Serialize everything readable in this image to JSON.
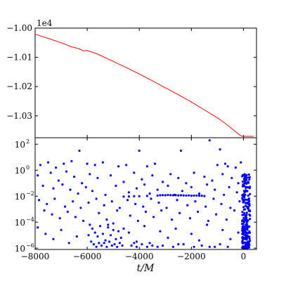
{
  "chart_data": [
    {
      "type": "line",
      "color": "#ff0000",
      "offset_label": "1e4",
      "xlim": [
        -8000,
        500
      ],
      "ylim": [
        -1.0375,
        -1.0
      ],
      "yticks": [
        -1.0,
        -1.01,
        -1.02,
        -1.03
      ],
      "ytick_labels": [
        "−1.00",
        "−1.01",
        "−1.02",
        "−1.03"
      ],
      "x": [
        -8000,
        -7500,
        -7000,
        -6600,
        -6300,
        -6150,
        -6000,
        -5850,
        -5600,
        -5000,
        -4500,
        -4000,
        -3500,
        -3000,
        -2500,
        -2000,
        -1500,
        -1000,
        -700,
        -500,
        -300,
        -150,
        -50,
        0,
        30,
        60,
        150,
        300,
        400
      ],
      "y": [
        -1.0021,
        -1.0035,
        -1.005,
        -1.0064,
        -1.0071,
        -1.0078,
        -1.0077,
        -1.0081,
        -1.0089,
        -1.0114,
        -1.0135,
        -1.0157,
        -1.018,
        -1.0204,
        -1.0228,
        -1.0253,
        -1.028,
        -1.0307,
        -1.0326,
        -1.034,
        -1.0355,
        -1.0365,
        -1.0375,
        -1.0385,
        -1.04,
        -1.042,
        -1.0422,
        -1.0425,
        -1.0428
      ]
    },
    {
      "type": "scatter",
      "color": "#0000ff",
      "xlabel": "t/M",
      "xlim": [
        -8000,
        500
      ],
      "yscale": "log",
      "ylim_log10": [
        -6.1,
        2.5
      ],
      "xticks": [
        -8000,
        -6000,
        -4000,
        -2000,
        0
      ],
      "xtick_labels": [
        "−8000",
        "−6000",
        "−4000",
        "−2000",
        "0"
      ],
      "yticks": [
        {
          "base": "10",
          "exp": "2"
        },
        {
          "base": "10",
          "exp": "0"
        },
        {
          "base": "10",
          "exp": "−2"
        },
        {
          "base": "10",
          "exp": "−4"
        },
        {
          "base": "10",
          "exp": "−6"
        }
      ],
      "ytick_values_log10": [
        2,
        0,
        -2,
        -4,
        -6
      ],
      "points": [
        [
          -6300,
          1.5
        ],
        [
          -4000,
          1.5
        ],
        [
          -1300,
          2.3
        ],
        [
          -900,
          1.6
        ],
        [
          -2400,
          1.5
        ],
        [
          -7800,
          0.4
        ],
        [
          -7500,
          0.6
        ],
        [
          -7200,
          0.2
        ],
        [
          -6900,
          0.5
        ],
        [
          -6600,
          0.7
        ],
        [
          -6000,
          0.5
        ],
        [
          -5700,
          0.4
        ],
        [
          -5400,
          0.6
        ],
        [
          -4800,
          0.3
        ],
        [
          -4500,
          0.4
        ],
        [
          -3700,
          0.3
        ],
        [
          -3400,
          0.5
        ],
        [
          -1000,
          0.4
        ],
        [
          -600,
          0.3
        ],
        [
          -300,
          0.2
        ],
        [
          -100,
          0.6
        ],
        [
          -700,
          0.5
        ],
        [
          -7900,
          -0.4
        ],
        [
          -7400,
          -0.2
        ],
        [
          -7100,
          -0.8
        ],
        [
          -6800,
          -0.1
        ],
        [
          -6500,
          -0.5
        ],
        [
          -6200,
          -1.0
        ],
        [
          -5900,
          -0.3
        ],
        [
          -5600,
          -0.6
        ],
        [
          -5100,
          -0.4
        ],
        [
          -4600,
          -0.9
        ],
        [
          -4200,
          -0.2
        ],
        [
          -3900,
          -0.7
        ],
        [
          -3500,
          -0.4
        ],
        [
          -3100,
          -0.9
        ],
        [
          -2800,
          -0.3
        ],
        [
          -2500,
          -0.6
        ],
        [
          -2200,
          -1.0
        ],
        [
          -1900,
          -0.2
        ],
        [
          -1500,
          -0.5
        ],
        [
          -1200,
          -0.8
        ],
        [
          -800,
          -0.3
        ],
        [
          -450,
          -0.6
        ],
        [
          -200,
          -1.0
        ],
        [
          -7700,
          -1.2
        ],
        [
          -7300,
          -1.4
        ],
        [
          -6950,
          -1.1
        ],
        [
          -6650,
          -1.5
        ],
        [
          -6350,
          -1.8
        ],
        [
          -6050,
          -1.3
        ],
        [
          -5800,
          -1.6
        ],
        [
          -5300,
          -1.9
        ],
        [
          -4900,
          -1.2
        ],
        [
          -4400,
          -1.7
        ],
        [
          -4100,
          -1.4
        ],
        [
          -3800,
          -1.1
        ],
        [
          -3600,
          -1.8
        ],
        [
          -3300,
          -1.5
        ],
        [
          -2900,
          -1.2
        ],
        [
          -2650,
          -1.9
        ],
        [
          -2350,
          -1.6
        ],
        [
          -2000,
          -1.3
        ],
        [
          -1700,
          -1.8
        ],
        [
          -1400,
          -1.1
        ],
        [
          -1100,
          -1.5
        ],
        [
          -750,
          -1.9
        ],
        [
          -550,
          -1.3
        ],
        [
          -250,
          -1.7
        ],
        [
          -3300,
          -1.95
        ],
        [
          -3200,
          -1.93
        ],
        [
          -3100,
          -1.92
        ],
        [
          -3000,
          -1.93
        ],
        [
          -2900,
          -1.91
        ],
        [
          -2800,
          -1.92
        ],
        [
          -2700,
          -1.93
        ],
        [
          -2600,
          -1.92
        ],
        [
          -2500,
          -1.94
        ],
        [
          -2400,
          -1.93
        ],
        [
          -2300,
          -1.94
        ],
        [
          -2200,
          -1.95
        ],
        [
          -2100,
          -1.94
        ],
        [
          -2000,
          -1.96
        ],
        [
          -1900,
          -1.95
        ],
        [
          -1800,
          -1.95
        ],
        [
          -1700,
          -1.96
        ],
        [
          -1600,
          -1.97
        ],
        [
          -1500,
          -1.99
        ],
        [
          -4000,
          -2.0
        ],
        [
          -4200,
          -2.0
        ],
        [
          -4400,
          -2.02
        ],
        [
          -4600,
          -2.03
        ],
        [
          -3700,
          -1.98
        ],
        [
          -7850,
          -2.3
        ],
        [
          -7550,
          -2.6
        ],
        [
          -7250,
          -2.2
        ],
        [
          -6850,
          -2.8
        ],
        [
          -6550,
          -2.4
        ],
        [
          -6250,
          -2.9
        ],
        [
          -5950,
          -2.5
        ],
        [
          -5650,
          -2.2
        ],
        [
          -5350,
          -2.7
        ],
        [
          -5050,
          -2.4
        ],
        [
          -4750,
          -2.9
        ],
        [
          -4450,
          -2.3
        ],
        [
          -4150,
          -2.6
        ],
        [
          -3850,
          -2.8
        ],
        [
          -3550,
          -2.2
        ],
        [
          -3250,
          -2.5
        ],
        [
          -2950,
          -2.9
        ],
        [
          -2550,
          -2.3
        ],
        [
          -2150,
          -2.7
        ],
        [
          -1850,
          -2.4
        ],
        [
          -1450,
          -2.8
        ],
        [
          -1150,
          -2.2
        ],
        [
          -850,
          -2.6
        ],
        [
          -500,
          -2.9
        ],
        [
          -150,
          -2.4
        ],
        [
          -7650,
          -3.1
        ],
        [
          -7350,
          -3.4
        ],
        [
          -7050,
          -3.7
        ],
        [
          -6750,
          -3.2
        ],
        [
          -6450,
          -3.6
        ],
        [
          -6150,
          -3.9
        ],
        [
          -5550,
          -3.3
        ],
        [
          -5250,
          -3.8
        ],
        [
          -4850,
          -3.1
        ],
        [
          -4350,
          -3.5
        ],
        [
          -4050,
          -3.9
        ],
        [
          -3750,
          -3.2
        ],
        [
          -3450,
          -3.6
        ],
        [
          -3150,
          -3.1
        ],
        [
          -2750,
          -3.8
        ],
        [
          -2450,
          -3.3
        ],
        [
          -2050,
          -3.7
        ],
        [
          -1750,
          -3.2
        ],
        [
          -1350,
          -3.9
        ],
        [
          -1050,
          -3.4
        ],
        [
          -650,
          -3.8
        ],
        [
          -350,
          -3.1
        ],
        [
          -5900,
          -4.2
        ],
        [
          -5800,
          -4.5
        ],
        [
          -5700,
          -4.8
        ],
        [
          -5600,
          -5.1
        ],
        [
          -5500,
          -4.3
        ],
        [
          -5400,
          -4.9
        ],
        [
          -5300,
          -5.4
        ],
        [
          -5200,
          -4.4
        ],
        [
          -5100,
          -5.0
        ],
        [
          -5000,
          -4.6
        ],
        [
          -4900,
          -5.3
        ],
        [
          -4800,
          -4.7
        ],
        [
          -4700,
          -5.2
        ],
        [
          -4600,
          -4.5
        ],
        [
          -5850,
          -5.5
        ],
        [
          -5750,
          -5.7
        ],
        [
          -5650,
          -5.9
        ],
        [
          -5550,
          -5.6
        ],
        [
          -5450,
          -5.8
        ],
        [
          -5350,
          -5.6
        ],
        [
          -5250,
          -5.9
        ],
        [
          -5150,
          -5.5
        ],
        [
          -5050,
          -5.8
        ],
        [
          -4950,
          -5.7
        ],
        [
          -4850,
          -5.9
        ],
        [
          -4750,
          -5.6
        ],
        [
          -4650,
          -5.8
        ],
        [
          -5950,
          -5.0
        ],
        [
          -5000,
          -4.1
        ],
        [
          -5200,
          -4.2
        ],
        [
          -7900,
          -4.4
        ],
        [
          -7600,
          -4.9
        ],
        [
          -7300,
          -5.3
        ],
        [
          -7000,
          -4.6
        ],
        [
          -6700,
          -5.6
        ],
        [
          -6400,
          -5.1
        ],
        [
          -4400,
          -4.8
        ],
        [
          -4100,
          -5.5
        ],
        [
          -3800,
          -4.3
        ],
        [
          -3500,
          -5.8
        ],
        [
          -3200,
          -4.7
        ],
        [
          -2900,
          -5.2
        ],
        [
          -2600,
          -4.5
        ],
        [
          -2300,
          -5.7
        ],
        [
          -2000,
          -4.9
        ],
        [
          -1700,
          -5.4
        ],
        [
          -1400,
          -4.2
        ],
        [
          -1100,
          -5.9
        ],
        [
          -800,
          -4.6
        ],
        [
          -500,
          -5.3
        ],
        [
          -200,
          -4.8
        ],
        [
          -4300,
          -5.8
        ],
        [
          -4200,
          -5.6
        ],
        [
          -4100,
          -5.9
        ],
        [
          -3900,
          -5.7
        ],
        [
          -3700,
          -5.9
        ],
        [
          -3600,
          -5.6
        ],
        [
          -3300,
          -5.9
        ],
        [
          -3100,
          -5.8
        ],
        [
          -2700,
          -5.9
        ],
        [
          -2500,
          -5.7
        ],
        [
          -1900,
          -5.9
        ],
        [
          -1600,
          -5.8
        ],
        [
          -1300,
          -5.9
        ],
        [
          -900,
          -5.7
        ],
        [
          -600,
          -5.9
        ]
      ],
      "dense_cluster": {
        "x_range": [
          -50,
          260
        ],
        "log10_range": [
          -6.0,
          -0.3
        ],
        "count": 240
      }
    }
  ]
}
